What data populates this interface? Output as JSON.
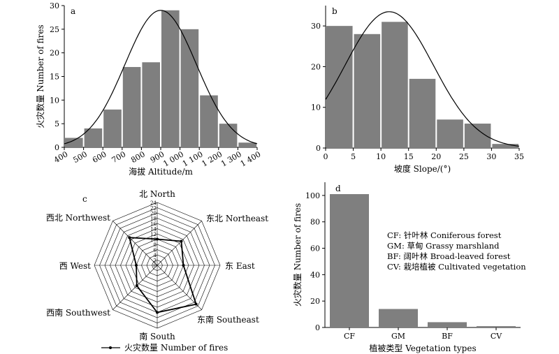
{
  "chart_data": [
    {
      "panel": "a",
      "type": "bar",
      "xlabel": "海拔 Altitude/m",
      "ylabel": "火灾数量 Number of fires",
      "xticks": [
        "400",
        "500",
        "600",
        "700",
        "800",
        "900",
        "1 000",
        "1 100",
        "1 200",
        "1 300",
        "1 400"
      ],
      "yticks": [
        "0",
        "5",
        "10",
        "15",
        "20",
        "25",
        "30"
      ],
      "xlim": [
        400,
        1400
      ],
      "ylim": [
        0,
        30
      ],
      "bins": [
        [
          400,
          500
        ],
        [
          500,
          600
        ],
        [
          600,
          700
        ],
        [
          700,
          800
        ],
        [
          800,
          900
        ],
        [
          900,
          1000
        ],
        [
          1000,
          1100
        ],
        [
          1100,
          1200
        ],
        [
          1200,
          1300
        ],
        [
          1300,
          1400
        ]
      ],
      "values": [
        2,
        4,
        8,
        17,
        18,
        29,
        25,
        11,
        5,
        1
      ],
      "curve": {
        "type": "normal",
        "peak_x": 900,
        "peak_y": 29,
        "sigma": 185
      },
      "grid": false
    },
    {
      "panel": "b",
      "type": "bar",
      "xlabel": "坡度 Slope/(°)",
      "ylabel": "",
      "xticks": [
        "0",
        "5",
        "10",
        "15",
        "20",
        "25",
        "30",
        "35"
      ],
      "yticks": [
        "0",
        "10",
        "20",
        "30"
      ],
      "xlim": [
        0,
        35
      ],
      "ylim": [
        0,
        35
      ],
      "bins": [
        [
          0,
          5
        ],
        [
          5,
          10
        ],
        [
          10,
          15
        ],
        [
          15,
          20
        ],
        [
          20,
          25
        ],
        [
          25,
          30
        ],
        [
          30,
          35
        ]
      ],
      "values": [
        30,
        28,
        31,
        17,
        7,
        6,
        1
      ],
      "curve": {
        "type": "normal",
        "peak_x": 11.5,
        "peak_y": 33.5,
        "sigma": 8
      },
      "grid": false
    },
    {
      "panel": "c",
      "type": "radar",
      "directions": [
        "北 North",
        "东北 Northeast",
        "东 East",
        "东南 Southeast",
        "南 South",
        "西南 Southwest",
        "西 West",
        "西北 Northwest"
      ],
      "values": [
        10,
        13,
        10,
        21,
        18,
        11,
        8,
        15
      ],
      "rticks": [
        "0",
        "2",
        "4",
        "6",
        "8",
        "10",
        "12",
        "14",
        "16",
        "18",
        "20",
        "22",
        "24"
      ],
      "rmax": 24,
      "legend": "火灾数量 Number of fires",
      "legend_position": "bottom"
    },
    {
      "panel": "d",
      "type": "bar",
      "xlabel": "植被类型 Vegetation types",
      "ylabel": "火灾数量 Number of fires",
      "categories": [
        "CF",
        "GM",
        "BF",
        "CV"
      ],
      "values": [
        101,
        14,
        4,
        1
      ],
      "yticks": [
        "0",
        "20",
        "40",
        "60",
        "80",
        "100"
      ],
      "ylim": [
        0,
        110
      ],
      "annotations": [
        "CF: 针叶林 Coniferous forest",
        "GM: 草甸 Grassy marshland",
        "BF: 阔叶林 Broad-leaved forest",
        "CV: 栽培植被 Cultivated vegetation"
      ],
      "grid": false
    }
  ],
  "labels": {
    "a": "a",
    "b": "b",
    "c": "c",
    "d": "d"
  },
  "colors": {
    "bar": "#7f7f7f",
    "line": "#000000"
  }
}
